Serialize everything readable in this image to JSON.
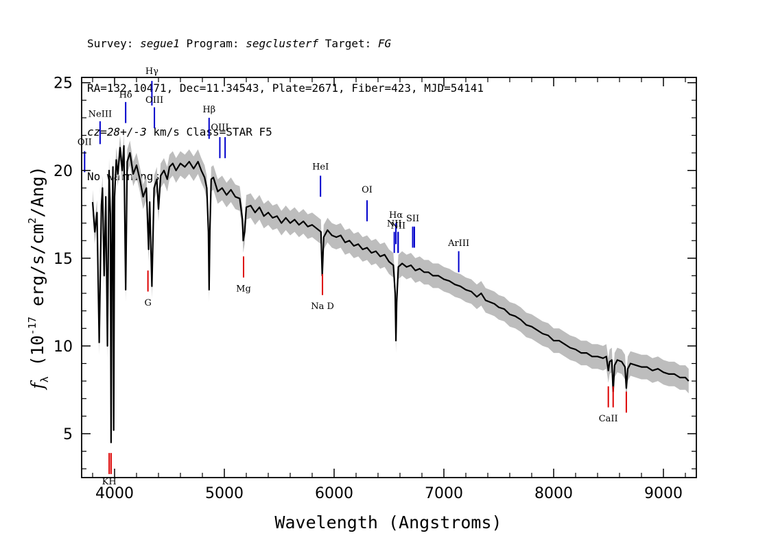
{
  "header": {
    "line1": {
      "survey_key": "Survey: ",
      "survey": "segue1",
      "program_key": " Program: ",
      "program": "segclusterf",
      "target_key": " Target: ",
      "target": "FG"
    },
    "line2": "RA=132.10471, Dec=11.34543, Plate=2671, Fiber=423, MJD=54141",
    "line3": {
      "cz": "cz=28+/-3",
      "rest": " km/s Class=STAR F5"
    },
    "line4": "No warnings."
  },
  "chart_data": {
    "type": "line",
    "xlabel": "Wavelength (Angstroms)",
    "ylabel": "f_λ (10^-17 erg/s/cm^2/Ang)",
    "xlim": [
      3700,
      9300
    ],
    "ylim": [
      2.5,
      25.3
    ],
    "x_ticks": [
      4000,
      5000,
      6000,
      7000,
      8000,
      9000
    ],
    "y_ticks": [
      5,
      10,
      15,
      20,
      25
    ],
    "colors": {
      "flux": "#000000",
      "error_band": "#bdbdbd",
      "emission_marker": "#0000cc",
      "absorption_marker": "#dd0000"
    },
    "spectrum": [
      [
        3800,
        18.2
      ],
      [
        3820,
        16.5
      ],
      [
        3840,
        17.6
      ],
      [
        3860,
        10.2
      ],
      [
        3880,
        18.0
      ],
      [
        3890,
        19.0
      ],
      [
        3905,
        14.0
      ],
      [
        3920,
        18.5
      ],
      [
        3935,
        10.0
      ],
      [
        3950,
        20.0
      ],
      [
        3962,
        17.5
      ],
      [
        3968,
        4.5
      ],
      [
        3975,
        15.0
      ],
      [
        3985,
        20.2
      ],
      [
        3992,
        5.2
      ],
      [
        4000,
        18.5
      ],
      [
        4015,
        20.6
      ],
      [
        4030,
        19.8
      ],
      [
        4050,
        21.3
      ],
      [
        4070,
        20.0
      ],
      [
        4085,
        21.4
      ],
      [
        4101,
        13.2
      ],
      [
        4115,
        20.5
      ],
      [
        4140,
        21.0
      ],
      [
        4170,
        19.8
      ],
      [
        4200,
        20.3
      ],
      [
        4230,
        19.5
      ],
      [
        4260,
        18.5
      ],
      [
        4290,
        19.0
      ],
      [
        4310,
        15.5
      ],
      [
        4320,
        18.2
      ],
      [
        4340,
        13.4
      ],
      [
        4360,
        19.0
      ],
      [
        4385,
        19.5
      ],
      [
        4400,
        17.8
      ],
      [
        4420,
        19.7
      ],
      [
        4450,
        20.0
      ],
      [
        4480,
        19.5
      ],
      [
        4500,
        20.2
      ],
      [
        4530,
        20.4
      ],
      [
        4560,
        20.0
      ],
      [
        4600,
        20.4
      ],
      [
        4640,
        20.2
      ],
      [
        4680,
        20.5
      ],
      [
        4720,
        20.1
      ],
      [
        4760,
        20.5
      ],
      [
        4790,
        20.0
      ],
      [
        4820,
        19.6
      ],
      [
        4840,
        19.0
      ],
      [
        4855,
        16.5
      ],
      [
        4861,
        13.2
      ],
      [
        4868,
        16.5
      ],
      [
        4880,
        19.5
      ],
      [
        4900,
        19.6
      ],
      [
        4940,
        18.8
      ],
      [
        4980,
        19.0
      ],
      [
        5020,
        18.6
      ],
      [
        5060,
        18.9
      ],
      [
        5100,
        18.5
      ],
      [
        5140,
        18.4
      ],
      [
        5165,
        17.2
      ],
      [
        5172,
        16.0
      ],
      [
        5185,
        16.5
      ],
      [
        5200,
        17.9
      ],
      [
        5240,
        18.0
      ],
      [
        5280,
        17.6
      ],
      [
        5320,
        17.9
      ],
      [
        5360,
        17.4
      ],
      [
        5400,
        17.6
      ],
      [
        5440,
        17.3
      ],
      [
        5480,
        17.4
      ],
      [
        5520,
        17.0
      ],
      [
        5560,
        17.3
      ],
      [
        5600,
        17.0
      ],
      [
        5640,
        17.2
      ],
      [
        5680,
        16.9
      ],
      [
        5720,
        17.1
      ],
      [
        5760,
        16.8
      ],
      [
        5800,
        16.9
      ],
      [
        5840,
        16.7
      ],
      [
        5880,
        16.5
      ],
      [
        5892,
        14.0
      ],
      [
        5905,
        16.2
      ],
      [
        5940,
        16.6
      ],
      [
        5980,
        16.3
      ],
      [
        6020,
        16.2
      ],
      [
        6060,
        16.3
      ],
      [
        6100,
        15.9
      ],
      [
        6140,
        16.0
      ],
      [
        6180,
        15.7
      ],
      [
        6220,
        15.8
      ],
      [
        6260,
        15.5
      ],
      [
        6300,
        15.6
      ],
      [
        6340,
        15.3
      ],
      [
        6380,
        15.4
      ],
      [
        6420,
        15.1
      ],
      [
        6460,
        15.2
      ],
      [
        6500,
        14.8
      ],
      [
        6540,
        14.6
      ],
      [
        6556,
        13.0
      ],
      [
        6563,
        10.3
      ],
      [
        6570,
        12.5
      ],
      [
        6585,
        14.5
      ],
      [
        6620,
        14.7
      ],
      [
        6660,
        14.5
      ],
      [
        6700,
        14.6
      ],
      [
        6740,
        14.3
      ],
      [
        6780,
        14.4
      ],
      [
        6820,
        14.2
      ],
      [
        6860,
        14.2
      ],
      [
        6900,
        14.0
      ],
      [
        6950,
        14.0
      ],
      [
        7000,
        13.8
      ],
      [
        7050,
        13.7
      ],
      [
        7100,
        13.5
      ],
      [
        7150,
        13.4
      ],
      [
        7200,
        13.2
      ],
      [
        7250,
        13.1
      ],
      [
        7300,
        12.8
      ],
      [
        7340,
        13.0
      ],
      [
        7380,
        12.6
      ],
      [
        7420,
        12.5
      ],
      [
        7460,
        12.4
      ],
      [
        7500,
        12.2
      ],
      [
        7550,
        12.1
      ],
      [
        7600,
        11.8
      ],
      [
        7650,
        11.7
      ],
      [
        7700,
        11.5
      ],
      [
        7750,
        11.2
      ],
      [
        7800,
        11.1
      ],
      [
        7850,
        10.9
      ],
      [
        7900,
        10.7
      ],
      [
        7950,
        10.6
      ],
      [
        8000,
        10.3
      ],
      [
        8050,
        10.3
      ],
      [
        8100,
        10.1
      ],
      [
        8150,
        9.9
      ],
      [
        8200,
        9.8
      ],
      [
        8250,
        9.6
      ],
      [
        8300,
        9.6
      ],
      [
        8350,
        9.4
      ],
      [
        8400,
        9.4
      ],
      [
        8450,
        9.3
      ],
      [
        8480,
        9.4
      ],
      [
        8498,
        8.6
      ],
      [
        8510,
        9.1
      ],
      [
        8530,
        9.2
      ],
      [
        8542,
        7.4
      ],
      [
        8555,
        8.9
      ],
      [
        8580,
        9.2
      ],
      [
        8620,
        9.1
      ],
      [
        8650,
        8.8
      ],
      [
        8662,
        7.6
      ],
      [
        8675,
        8.7
      ],
      [
        8700,
        9.0
      ],
      [
        8750,
        8.9
      ],
      [
        8800,
        8.8
      ],
      [
        8850,
        8.8
      ],
      [
        8900,
        8.6
      ],
      [
        8950,
        8.7
      ],
      [
        9000,
        8.5
      ],
      [
        9050,
        8.4
      ],
      [
        9100,
        8.4
      ],
      [
        9150,
        8.2
      ],
      [
        9200,
        8.2
      ],
      [
        9230,
        8.0
      ]
    ],
    "error_halfwidth": 0.7,
    "emission_lines": [
      {
        "name": "OII",
        "wavelength": 3727,
        "y": [
          19.9,
          21.1
        ],
        "label_y": 21.45
      },
      {
        "name": "NeIII",
        "wavelength": 3868,
        "y": [
          21.5,
          22.8
        ],
        "label_y": 23.05
      },
      {
        "name": "Hδ",
        "wavelength": 4101,
        "y": [
          22.7,
          23.9
        ],
        "label_y": 24.15
      },
      {
        "name": "Hγ",
        "wavelength": 4340,
        "y": [
          23.7,
          25.1
        ],
        "label_y": 25.5
      },
      {
        "name": "OIII",
        "wavelength": 4363,
        "y": [
          22.4,
          23.6
        ],
        "label_y": 23.85
      },
      {
        "name": "Hβ",
        "wavelength": 4861,
        "y": [
          21.8,
          23.0
        ],
        "label_y": 23.3
      },
      {
        "name": "OIII",
        "wavelength": 4959,
        "y": [
          20.7,
          21.9
        ],
        "label_y": 22.3
      },
      {
        "name": "OIII",
        "wavelength": 5007,
        "y": [
          20.7,
          21.9
        ],
        "label_y": null
      },
      {
        "name": "HeI",
        "wavelength": 5876,
        "y": [
          18.5,
          19.7
        ],
        "label_y": 20.05
      },
      {
        "name": "OI",
        "wavelength": 6300,
        "y": [
          17.1,
          18.3
        ],
        "label_y": 18.75
      },
      {
        "name": "NII",
        "wavelength": 6548,
        "y": [
          15.3,
          16.5
        ],
        "label_y": 16.8
      },
      {
        "name": "Hα",
        "wavelength": 6563,
        "y": [
          15.8,
          17.0
        ],
        "label_y": 17.3
      },
      {
        "name": "NII",
        "wavelength": 6583,
        "y": [
          15.3,
          16.5
        ],
        "label_y": null
      },
      {
        "name": "NII",
        "wavelength": 6583,
        "y": [
          15.3,
          16.5
        ],
        "label_y": 16.7
      },
      {
        "name": "SII",
        "wavelength": 6716,
        "y": [
          15.6,
          16.8
        ],
        "label_y": 17.1
      },
      {
        "name": "SII",
        "wavelength": 6731,
        "y": [
          15.6,
          16.8
        ],
        "label_y": null
      },
      {
        "name": "ArIII",
        "wavelength": 7135,
        "y": [
          14.2,
          15.4
        ],
        "label_y": 15.7
      }
    ],
    "absorption_lines": [
      {
        "name": "KH",
        "wavelength": 3951,
        "y": [
          2.7,
          3.9
        ],
        "label_y": 2.1
      },
      {
        "name": "",
        "wavelength": 3968,
        "y": [
          2.7,
          3.9
        ],
        "label_y": null
      },
      {
        "name": "G",
        "wavelength": 4304,
        "y": [
          13.1,
          14.3
        ],
        "label_y": 12.3
      },
      {
        "name": "Mg",
        "wavelength": 5175,
        "y": [
          13.9,
          15.1
        ],
        "label_y": 13.1
      },
      {
        "name": "Na D",
        "wavelength": 5894,
        "y": [
          12.9,
          14.1
        ],
        "label_y": 12.1
      },
      {
        "name": "CaII",
        "wavelength": 8498,
        "y": [
          6.5,
          7.7
        ],
        "label_y": 5.7
      },
      {
        "name": "",
        "wavelength": 8542,
        "y": [
          6.5,
          7.7
        ],
        "label_y": null
      },
      {
        "name": "",
        "wavelength": 8662,
        "y": [
          6.2,
          7.4
        ],
        "label_y": null
      }
    ]
  }
}
